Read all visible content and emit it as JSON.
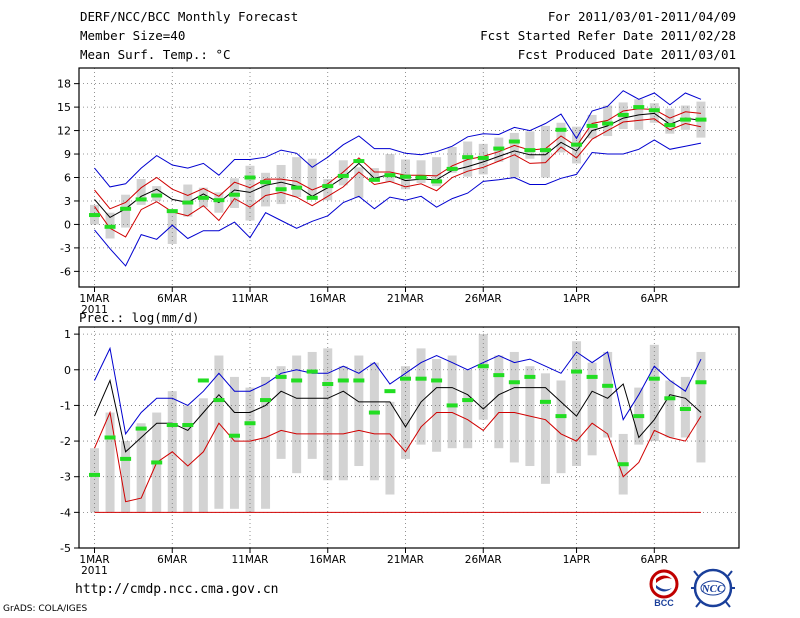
{
  "header": {
    "title": "DERF/NCC/BCC Monthly Forecast",
    "member_size": "Member Size=40",
    "variable": "Mean Surf. Temp.: °C",
    "period": "For 2011/03/01-2011/04/09",
    "started": "Fcst Started Refer Date 2011/02/28",
    "produced": "Fcst Produced Date 2011/03/01"
  },
  "footer": {
    "url": "http://cmdp.ncc.cma.gov.cn",
    "grads": "GrADS: COLA/IGES",
    "logo_left_text": "BCC",
    "logo_right_text": "NCC"
  },
  "colors": {
    "median": "#000000",
    "spread": "#d00000",
    "extreme": "#0000d0",
    "observed": "#22dd22",
    "box": "#d3d3d3",
    "grid": "#777777"
  },
  "chart_data": [
    {
      "type": "line",
      "title": "Mean Surf. Temp.: °C",
      "x_labels": [
        {
          "day": 1,
          "label": "1MAR",
          "sub": "2011"
        },
        {
          "day": 6,
          "label": "6MAR"
        },
        {
          "day": 11,
          "label": "11MAR"
        },
        {
          "day": 16,
          "label": "16MAR"
        },
        {
          "day": 21,
          "label": "21MAR"
        },
        {
          "day": 26,
          "label": "26MAR"
        },
        {
          "day": 32,
          "label": "1APR"
        },
        {
          "day": 37,
          "label": "6APR"
        }
      ],
      "ylim": [
        -8,
        20
      ],
      "yticks": [
        -6,
        -3,
        0,
        3,
        6,
        9,
        12,
        15,
        18
      ],
      "days": [
        1,
        2,
        3,
        4,
        5,
        6,
        7,
        8,
        9,
        10,
        11,
        12,
        13,
        14,
        15,
        16,
        17,
        18,
        19,
        20,
        21,
        22,
        23,
        24,
        25,
        26,
        27,
        28,
        29,
        30,
        31,
        32,
        33,
        34,
        35,
        36,
        37,
        38,
        39,
        40
      ],
      "series": [
        {
          "name": "ensemble max",
          "color_key": "extreme",
          "values": [
            7.2,
            4.8,
            5.2,
            7.2,
            8.8,
            7.6,
            7.2,
            7.8,
            6.3,
            8.3,
            8.3,
            8.6,
            9.5,
            9.1,
            7.3,
            8.6,
            10.2,
            11.3,
            9.7,
            9.7,
            9.1,
            8.9,
            9.3,
            10.0,
            11.2,
            11.6,
            11.5,
            12.4,
            12.0,
            12.9,
            14.1,
            11.0,
            14.5,
            15.1,
            17.1,
            16.0,
            16.8,
            15.3,
            16.8,
            16.0
          ]
        },
        {
          "name": "ensemble upper",
          "color_key": "spread",
          "values": [
            4.4,
            2.0,
            2.8,
            4.7,
            6.0,
            4.5,
            3.7,
            4.6,
            3.6,
            5.4,
            4.7,
            5.8,
            5.8,
            5.5,
            4.4,
            5.2,
            6.7,
            8.5,
            6.7,
            6.7,
            6.3,
            6.3,
            6.2,
            7.5,
            8.3,
            8.7,
            9.3,
            10.1,
            9.5,
            9.7,
            11.3,
            10.0,
            12.9,
            13.3,
            14.5,
            14.8,
            14.7,
            13.6,
            14.4,
            14.2
          ]
        },
        {
          "name": "ensemble median",
          "color_key": "median",
          "values": [
            3.2,
            0.9,
            2.0,
            3.6,
            4.5,
            3.2,
            2.8,
            3.9,
            2.8,
            4.4,
            4.1,
            5.0,
            5.4,
            4.9,
            3.6,
            4.7,
            6.0,
            7.8,
            5.9,
            6.4,
            5.6,
            5.8,
            5.7,
            6.9,
            7.4,
            8.0,
            8.7,
            9.4,
            8.9,
            8.9,
            10.5,
            9.4,
            12.0,
            12.6,
            13.6,
            14.0,
            14.2,
            12.8,
            13.6,
            13.3
          ]
        },
        {
          "name": "ensemble lower",
          "color_key": "spread",
          "values": [
            2.3,
            -0.5,
            -1.6,
            1.9,
            2.9,
            1.6,
            1.1,
            2.4,
            0.5,
            3.3,
            2.2,
            3.7,
            4.1,
            3.5,
            2.4,
            3.6,
            4.8,
            6.7,
            5.1,
            5.5,
            4.8,
            5.2,
            4.3,
            6.0,
            6.8,
            7.3,
            8.1,
            8.9,
            7.8,
            7.9,
            9.9,
            8.5,
            10.9,
            12.0,
            13.1,
            13.3,
            13.5,
            12.1,
            12.9,
            12.5
          ]
        },
        {
          "name": "ensemble min",
          "color_key": "extreme",
          "values": [
            -0.7,
            -3.1,
            -5.3,
            -1.3,
            -1.9,
            -0.1,
            -1.8,
            -0.8,
            -0.8,
            0.3,
            -1.7,
            1.5,
            0.5,
            -0.5,
            0.4,
            1.1,
            2.8,
            3.6,
            2.0,
            3.5,
            3.1,
            3.6,
            2.2,
            3.3,
            4.0,
            5.5,
            5.7,
            6.0,
            5.1,
            5.1,
            5.9,
            6.4,
            9.2,
            9.0,
            9.0,
            9.6,
            10.8,
            9.6,
            10.0,
            10.4
          ]
        }
      ],
      "observed": [
        1.2,
        -0.3,
        2.0,
        3.2,
        3.7,
        1.7,
        2.8,
        3.4,
        3.1,
        3.8,
        6.0,
        5.4,
        4.5,
        4.7,
        3.4,
        4.9,
        6.2,
        8.1,
        5.7,
        6.3,
        6.1,
        6.0,
        5.5,
        7.1,
        8.6,
        8.5,
        9.7,
        10.6,
        9.5,
        9.5,
        12.1,
        10.2,
        12.6,
        12.9,
        14.0,
        15.0,
        14.6,
        12.7,
        13.4,
        13.4
      ],
      "boxes": [
        [
          0,
          2.5
        ],
        [
          -1.8,
          1.5
        ],
        [
          -0.4,
          3.8
        ],
        [
          2.5,
          5.8
        ],
        [
          3.0,
          4.9
        ],
        [
          -2.5,
          1.8
        ],
        [
          1.0,
          5.1
        ],
        [
          2.2,
          4.7
        ],
        [
          1.5,
          4.1
        ],
        [
          2.1,
          5.9
        ],
        [
          0.5,
          7.5
        ],
        [
          2.3,
          6.6
        ],
        [
          2.6,
          7.6
        ],
        [
          3.5,
          8.6
        ],
        [
          3.6,
          8.4
        ],
        [
          3.1,
          5.8
        ],
        [
          5.0,
          8.2
        ],
        [
          3.4,
          7.3
        ],
        [
          6.0,
          7.2
        ],
        [
          5.4,
          9.0
        ],
        [
          4.5,
          8.3
        ],
        [
          5.3,
          8.2
        ],
        [
          4.9,
          8.6
        ],
        [
          6.6,
          9.9
        ],
        [
          6.1,
          10.6
        ],
        [
          6.4,
          10.3
        ],
        [
          8.0,
          11.1
        ],
        [
          6.0,
          11.7
        ],
        [
          8.4,
          11.9
        ],
        [
          6.0,
          12.6
        ],
        [
          9.2,
          13.0
        ],
        [
          7.8,
          12.5
        ],
        [
          11.0,
          14.0
        ],
        [
          11.3,
          15.2
        ],
        [
          12.2,
          15.6
        ],
        [
          12.1,
          16.0
        ],
        [
          13.0,
          15.5
        ],
        [
          11.6,
          14.8
        ],
        [
          12.1,
          15.2
        ],
        [
          11.1,
          15.7
        ]
      ]
    },
    {
      "type": "line",
      "title": "Prec.: log(mm/d)",
      "x_labels": [
        {
          "day": 1,
          "label": "1MAR",
          "sub": "2011"
        },
        {
          "day": 6,
          "label": "6MAR"
        },
        {
          "day": 11,
          "label": "11MAR"
        },
        {
          "day": 16,
          "label": "16MAR"
        },
        {
          "day": 21,
          "label": "21MAR"
        },
        {
          "day": 26,
          "label": "26MAR"
        },
        {
          "day": 32,
          "label": "1APR"
        },
        {
          "day": 37,
          "label": "6APR"
        }
      ],
      "ylim": [
        -5,
        1.2
      ],
      "yticks": [
        -5,
        -4,
        -3,
        -2,
        -1,
        0,
        1
      ],
      "days": [
        1,
        2,
        3,
        4,
        5,
        6,
        7,
        8,
        9,
        10,
        11,
        12,
        13,
        14,
        15,
        16,
        17,
        18,
        19,
        20,
        21,
        22,
        23,
        24,
        25,
        26,
        27,
        28,
        29,
        30,
        31,
        32,
        33,
        34,
        35,
        36,
        37,
        38,
        39,
        40
      ],
      "series": [
        {
          "name": "ensemble max",
          "color_key": "extreme",
          "values": [
            -0.3,
            0.6,
            -1.8,
            -1.2,
            -0.8,
            -0.8,
            -1.0,
            -0.6,
            -0.1,
            -0.6,
            -0.6,
            -0.4,
            -0.1,
            0.0,
            -0.1,
            -0.1,
            0.1,
            -0.1,
            0.2,
            -0.4,
            -0.1,
            0.2,
            0.4,
            0.2,
            0.0,
            0.2,
            0.4,
            0.2,
            0.3,
            0.1,
            -0.1,
            0.5,
            0.2,
            0.5,
            -1.4,
            -0.7,
            0.1,
            -0.3,
            -0.6,
            0.3
          ]
        },
        {
          "name": "ensemble median",
          "color_key": "median",
          "values": [
            -1.3,
            -0.3,
            -2.3,
            -1.9,
            -1.5,
            -1.5,
            -1.7,
            -1.2,
            -0.7,
            -1.2,
            -1.2,
            -1.0,
            -0.6,
            -0.8,
            -0.8,
            -0.8,
            -0.6,
            -0.9,
            -0.9,
            -0.9,
            -1.6,
            -0.9,
            -0.5,
            -0.5,
            -0.7,
            -1.1,
            -0.7,
            -0.5,
            -0.5,
            -0.5,
            -0.9,
            -1.3,
            -0.6,
            -0.8,
            -0.4,
            -1.9,
            -1.4,
            -0.7,
            -0.8,
            -1.2
          ]
        },
        {
          "name": "ensemble low",
          "color_key": "spread",
          "values": [
            -2.2,
            -1.2,
            -3.7,
            -3.6,
            -2.6,
            -2.3,
            -2.7,
            -2.3,
            -1.5,
            -2.0,
            -2.0,
            -1.9,
            -1.7,
            -1.8,
            -1.8,
            -1.8,
            -1.8,
            -1.7,
            -1.8,
            -1.8,
            -2.3,
            -1.6,
            -1.2,
            -1.2,
            -1.4,
            -1.7,
            -1.2,
            -1.2,
            -1.3,
            -1.4,
            -1.8,
            -2.0,
            -1.5,
            -1.8,
            -3.0,
            -2.6,
            -1.7,
            -1.9,
            -2.0,
            -1.3
          ]
        }
      ],
      "observed": [
        -2.95,
        -1.9,
        -2.5,
        -1.65,
        -2.6,
        -1.55,
        -1.55,
        -0.3,
        -0.85,
        -1.85,
        -1.5,
        -0.85,
        -0.2,
        -0.3,
        -0.05,
        -0.4,
        -0.3,
        -0.3,
        -1.2,
        -0.6,
        -0.25,
        -0.25,
        -0.3,
        -1.0,
        -0.85,
        0.1,
        -0.15,
        -0.35,
        -0.2,
        -0.9,
        -1.3,
        -0.05,
        -0.2,
        -0.45,
        -2.65,
        -1.3,
        -0.25,
        -0.8,
        -1.1,
        -0.35
      ],
      "boxes": [
        [
          -4.0,
          -2.2
        ],
        [
          -4.0,
          -1.2
        ],
        [
          -4.0,
          -2.0
        ],
        [
          -4.0,
          -1.5
        ],
        [
          -4.0,
          -1.2
        ],
        [
          -4.0,
          -0.6
        ],
        [
          -4.0,
          -1.0
        ],
        [
          -4.0,
          -0.8
        ],
        [
          -3.9,
          0.4
        ],
        [
          -3.9,
          -0.2
        ],
        [
          -4.0,
          -0.5
        ],
        [
          -3.9,
          -0.2
        ],
        [
          -2.5,
          0.1
        ],
        [
          -2.9,
          0.4
        ],
        [
          -2.5,
          0.5
        ],
        [
          -3.1,
          0.6
        ],
        [
          -3.1,
          0.1
        ],
        [
          -2.7,
          0.4
        ],
        [
          -3.1,
          0.2
        ],
        [
          -3.5,
          -0.9
        ],
        [
          -2.5,
          0.1
        ],
        [
          -2.1,
          0.6
        ],
        [
          -2.3,
          0.3
        ],
        [
          -2.2,
          0.4
        ],
        [
          -2.2,
          0.0
        ],
        [
          -1.4,
          1.0
        ],
        [
          -2.2,
          0.4
        ],
        [
          -2.6,
          0.5
        ],
        [
          -2.7,
          0.1
        ],
        [
          -3.2,
          -0.1
        ],
        [
          -2.9,
          -0.3
        ],
        [
          -2.7,
          0.8
        ],
        [
          -2.4,
          0.2
        ],
        [
          -1.9,
          0.5
        ],
        [
          -3.5,
          -1.8
        ],
        [
          -2.1,
          -0.5
        ],
        [
          -2.0,
          0.7
        ],
        [
          -1.9,
          -0.3
        ],
        [
          -1.9,
          -0.2
        ],
        [
          -2.6,
          0.5
        ]
      ],
      "floor_value": -4.0
    }
  ]
}
